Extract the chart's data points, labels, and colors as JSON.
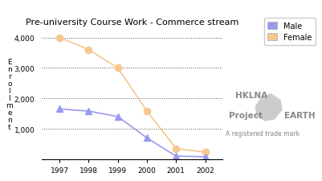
{
  "title": "Pre-university Course Work - Commerce stream",
  "years": [
    1997,
    1998,
    1999,
    2000,
    2001,
    2002
  ],
  "male_values": [
    1650,
    1580,
    1400,
    700,
    100,
    80
  ],
  "female_values": [
    4000,
    3600,
    3000,
    1580,
    350,
    230
  ],
  "male_color": "#9999ee",
  "female_color": "#f5c890",
  "male_marker": "^",
  "female_marker": "o",
  "ylim": [
    0,
    4300
  ],
  "yticks": [
    0,
    1000,
    2000,
    3000,
    4000
  ],
  "ytick_labels": [
    "",
    "1,000",
    "2,000",
    "3,000",
    "4,000"
  ],
  "background_color": "#ffffff",
  "grid_color": "#555555",
  "title_fontsize": 8,
  "watermark_line1": "HKLNA",
  "watermark_line2": "Project",
  "watermark_line3": "EARTH",
  "watermark_line4": "A registered trade mark",
  "ylabel_chars": [
    "E",
    "n",
    "r",
    "o",
    "l",
    "l",
    "m",
    "e",
    "n",
    "t"
  ]
}
